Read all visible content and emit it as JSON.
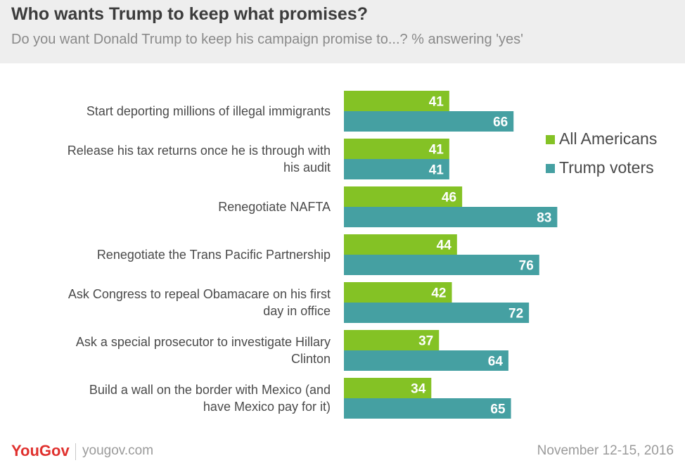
{
  "header": {
    "title": "Who wants Trump to keep what promises?",
    "subtitle": "Do you want Donald Trump to keep his campaign promise to...? % answering 'yes'"
  },
  "chart_data": {
    "type": "bar",
    "orientation": "horizontal",
    "categories": [
      [
        "Start deporting millions of illegal immigrants"
      ],
      [
        "Release his tax returns once he is through with",
        "his audit"
      ],
      [
        "Renegotiate NAFTA"
      ],
      [
        "Renegotiate the Trans Pacific Partnership"
      ],
      [
        "Ask Congress to repeal Obamacare on his first",
        "day in office"
      ],
      [
        "Ask a special prosecutor to investigate Hillary",
        "Clinton"
      ],
      [
        "Build a wall on the border with Mexico (and",
        "have Mexico pay for it)"
      ]
    ],
    "series": [
      {
        "name": "All Americans",
        "color": "#84c225",
        "values": [
          41,
          41,
          46,
          44,
          42,
          37,
          34
        ]
      },
      {
        "name": "Trump voters",
        "color": "#45a0a2",
        "values": [
          66,
          41,
          83,
          76,
          72,
          64,
          65
        ]
      }
    ],
    "legend_position": "right",
    "grid": false,
    "axis_visible": false,
    "data_labels": true
  },
  "footer": {
    "brand": "YouGov",
    "url": "yougov.com",
    "date": "November 12-15, 2016"
  },
  "icons": {
    "logo": "yougov-logo"
  }
}
